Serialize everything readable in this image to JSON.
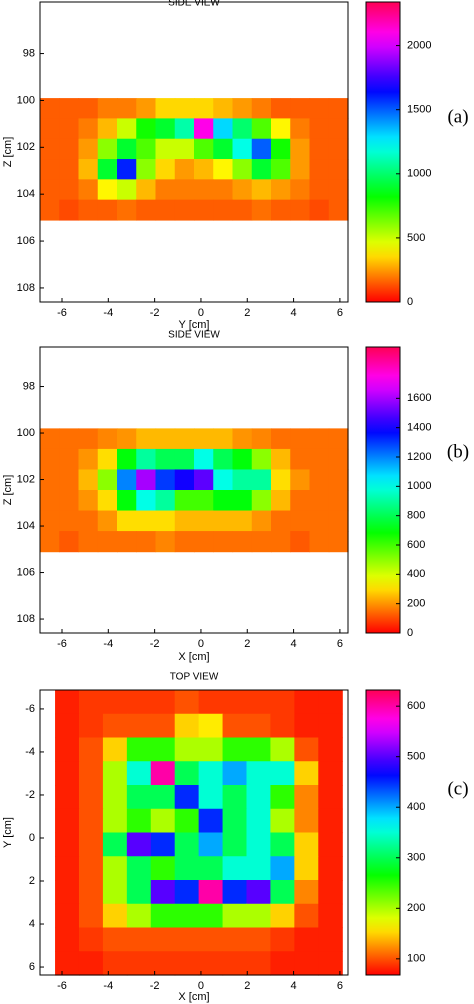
{
  "chart_data": [
    {
      "type": "heatmap",
      "title": "SIDE VIEW",
      "xlabel": "Y [cm]",
      "ylabel": "Z [cm]",
      "panel_label": "(a)",
      "xlim": [
        -6.95,
        6.35
      ],
      "ylim": [
        95.8,
        108.6
      ],
      "xticks": [
        -6,
        -4,
        -2,
        0,
        2,
        4,
        6
      ],
      "yticks": [
        98,
        100,
        102,
        104,
        106,
        108
      ],
      "extent_x": [
        -6.95,
        6.35
      ],
      "extent_y": [
        99.9,
        105.1
      ],
      "values": [
        [
          150,
          150,
          150,
          200,
          200,
          250,
          350,
          350,
          350,
          300,
          250,
          200,
          150,
          150,
          150,
          150
        ],
        [
          150,
          150,
          200,
          300,
          500,
          800,
          900,
          1100,
          2100,
          1300,
          1000,
          700,
          400,
          200,
          150,
          150
        ],
        [
          150,
          150,
          250,
          600,
          900,
          700,
          500,
          500,
          700,
          900,
          1200,
          1500,
          800,
          250,
          150,
          150
        ],
        [
          150,
          150,
          300,
          900,
          1600,
          600,
          350,
          250,
          300,
          400,
          600,
          900,
          700,
          250,
          150,
          150
        ],
        [
          150,
          150,
          200,
          400,
          500,
          300,
          200,
          200,
          200,
          200,
          250,
          300,
          250,
          200,
          150,
          150
        ],
        [
          150,
          120,
          150,
          150,
          180,
          150,
          150,
          150,
          150,
          150,
          150,
          180,
          150,
          150,
          120,
          150
        ]
      ],
      "clim": [
        0,
        2340
      ],
      "cticks": [
        0,
        500,
        1000,
        1500,
        2000
      ]
    },
    {
      "type": "heatmap",
      "title": "SIDE VIEW",
      "xlabel": "X [cm]",
      "ylabel": "Z [cm]",
      "panel_label": "(b)",
      "xlim": [
        -6.95,
        6.35
      ],
      "ylim": [
        96.3,
        108.6
      ],
      "xticks": [
        -6,
        -4,
        -2,
        0,
        2,
        4,
        6
      ],
      "yticks": [
        98,
        100,
        102,
        104,
        106,
        108
      ],
      "extent_x": [
        -6.95,
        6.35
      ],
      "extent_y": [
        99.8,
        105.1
      ],
      "values": [
        [
          150,
          150,
          150,
          180,
          200,
          250,
          250,
          250,
          250,
          250,
          200,
          180,
          150,
          150,
          150,
          150
        ],
        [
          150,
          150,
          200,
          300,
          700,
          900,
          800,
          800,
          1000,
          800,
          700,
          500,
          250,
          150,
          150,
          150
        ],
        [
          150,
          150,
          250,
          500,
          1200,
          1600,
          1300,
          1400,
          1500,
          1000,
          900,
          900,
          300,
          200,
          150,
          150
        ],
        [
          150,
          150,
          200,
          300,
          700,
          1000,
          900,
          600,
          600,
          700,
          700,
          500,
          250,
          150,
          150,
          150
        ],
        [
          150,
          150,
          150,
          200,
          300,
          300,
          300,
          250,
          250,
          250,
          250,
          200,
          150,
          150,
          150,
          150
        ],
        [
          150,
          120,
          150,
          150,
          150,
          150,
          180,
          150,
          150,
          150,
          150,
          150,
          150,
          120,
          150,
          150
        ]
      ],
      "clim": [
        0,
        1950
      ],
      "cticks": [
        0,
        200,
        400,
        600,
        800,
        1000,
        1200,
        1400,
        1600
      ]
    },
    {
      "type": "heatmap",
      "title": "TOP VIEW",
      "xlabel": "X [cm]",
      "ylabel": "Y [cm]",
      "panel_label": "(c)",
      "xlim": [
        -6.95,
        6.35
      ],
      "ylim": [
        -6.88,
        6.37
      ],
      "xticks": [
        -6,
        -4,
        -2,
        0,
        2,
        4,
        6
      ],
      "yticks": [
        -6,
        -4,
        -2,
        0,
        2,
        4,
        6
      ],
      "extent_x": [
        -6.3,
        6.1
      ],
      "extent_y": [
        -6.88,
        6.37
      ],
      "values": [
        [
          80,
          90,
          90,
          90,
          90,
          100,
          90,
          90,
          90,
          90,
          80,
          80
        ],
        [
          80,
          90,
          100,
          100,
          100,
          150,
          160,
          100,
          100,
          90,
          80,
          80
        ],
        [
          80,
          100,
          150,
          250,
          250,
          200,
          200,
          250,
          250,
          200,
          100,
          80
        ],
        [
          80,
          100,
          200,
          350,
          600,
          300,
          350,
          400,
          350,
          350,
          150,
          80
        ],
        [
          80,
          100,
          200,
          300,
          300,
          450,
          350,
          300,
          350,
          250,
          120,
          80
        ],
        [
          80,
          100,
          200,
          250,
          200,
          250,
          450,
          300,
          350,
          200,
          120,
          80
        ],
        [
          80,
          100,
          300,
          500,
          450,
          300,
          400,
          300,
          350,
          300,
          150,
          80
        ],
        [
          80,
          100,
          200,
          300,
          250,
          300,
          300,
          350,
          350,
          400,
          150,
          80
        ],
        [
          80,
          100,
          200,
          300,
          500,
          450,
          600,
          450,
          500,
          300,
          120,
          80
        ],
        [
          80,
          100,
          150,
          200,
          250,
          250,
          250,
          200,
          200,
          150,
          100,
          80
        ],
        [
          80,
          90,
          100,
          100,
          100,
          100,
          100,
          100,
          100,
          90,
          80,
          80
        ],
        [
          80,
          80,
          90,
          90,
          90,
          90,
          90,
          90,
          90,
          80,
          80,
          80
        ]
      ],
      "clim": [
        68,
        632
      ],
      "cticks": [
        100,
        200,
        300,
        400,
        500,
        600
      ]
    }
  ]
}
